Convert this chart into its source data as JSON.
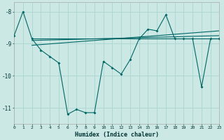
{
  "xlabel": "Humidex (Indice chaleur)",
  "background_color": "#cce8e4",
  "line_color": "#006666",
  "grid_color": "#b0d8d2",
  "x_values": [
    0,
    1,
    2,
    3,
    4,
    5,
    6,
    7,
    8,
    9,
    10,
    11,
    12,
    13,
    14,
    15,
    16,
    17,
    18,
    19,
    20,
    21,
    22,
    23
  ],
  "y_main": [
    -8.75,
    -8.0,
    -8.85,
    -9.2,
    -9.4,
    -9.6,
    -11.2,
    -11.05,
    -11.15,
    -11.15,
    -9.55,
    -9.75,
    -9.95,
    -9.5,
    -8.85,
    -8.55,
    -8.6,
    -8.1,
    -8.85,
    -8.85,
    -8.85,
    -10.35,
    -8.85,
    -8.85
  ],
  "trend1_x": [
    2,
    23
  ],
  "trend1_y": [
    -8.85,
    -8.85
  ],
  "trend2_x": [
    2,
    23
  ],
  "trend2_y": [
    -8.9,
    -8.75
  ],
  "trend3_x": [
    2,
    23
  ],
  "trend3_y": [
    -9.05,
    -8.6
  ],
  "ylim": [
    -11.5,
    -7.7
  ],
  "xlim": [
    0,
    23
  ],
  "yticks": [
    -11,
    -10,
    -9,
    -8
  ],
  "xticks": [
    0,
    1,
    2,
    3,
    4,
    5,
    6,
    7,
    8,
    9,
    10,
    11,
    12,
    13,
    14,
    15,
    16,
    17,
    18,
    19,
    20,
    21,
    22,
    23
  ],
  "figsize": [
    3.2,
    2.0
  ],
  "dpi": 100
}
